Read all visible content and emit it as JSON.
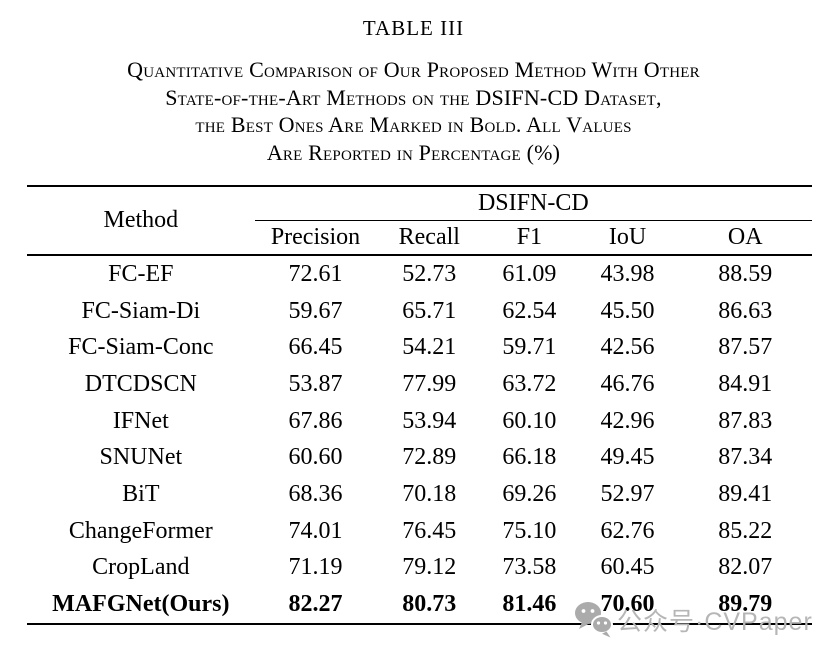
{
  "title": "TABLE III",
  "caption": {
    "lines": [
      "Quantitative Comparison of Our Proposed Method With Other",
      "State-of-the-Art Methods on the DSIFN-CD Dataset,",
      "the Best Ones Are Marked in Bold. All Values",
      "Are Reported in Percentage (%)"
    ]
  },
  "table": {
    "method_header": "Method",
    "group_header": "DSIFN-CD",
    "columns": [
      "Precision",
      "Recall",
      "F1",
      "IoU",
      "OA"
    ],
    "rows": [
      {
        "method": "FC-EF",
        "values": [
          "72.61",
          "52.73",
          "61.09",
          "43.98",
          "88.59"
        ],
        "bold": false
      },
      {
        "method": "FC-Siam-Di",
        "values": [
          "59.67",
          "65.71",
          "62.54",
          "45.50",
          "86.63"
        ],
        "bold": false
      },
      {
        "method": "FC-Siam-Conc",
        "values": [
          "66.45",
          "54.21",
          "59.71",
          "42.56",
          "87.57"
        ],
        "bold": false
      },
      {
        "method": "DTCDSCN",
        "values": [
          "53.87",
          "77.99",
          "63.72",
          "46.76",
          "84.91"
        ],
        "bold": false
      },
      {
        "method": "IFNet",
        "values": [
          "67.86",
          "53.94",
          "60.10",
          "42.96",
          "87.83"
        ],
        "bold": false
      },
      {
        "method": "SNUNet",
        "values": [
          "60.60",
          "72.89",
          "66.18",
          "49.45",
          "87.34"
        ],
        "bold": false
      },
      {
        "method": "BiT",
        "values": [
          "68.36",
          "70.18",
          "69.26",
          "52.97",
          "89.41"
        ],
        "bold": false
      },
      {
        "method": "ChangeFormer",
        "values": [
          "74.01",
          "76.45",
          "75.10",
          "62.76",
          "85.22"
        ],
        "bold": false
      },
      {
        "method": "CropLand",
        "values": [
          "71.19",
          "79.12",
          "73.58",
          "60.45",
          "82.07"
        ],
        "bold": false
      },
      {
        "method": "MAFGNet(Ours)",
        "values": [
          "82.27",
          "80.73",
          "81.46",
          "70.60",
          "89.79"
        ],
        "bold": true
      }
    ]
  },
  "watermark": {
    "icon": "wechat-icon",
    "text": "公众号·CVPaper",
    "text_color": "#b6b6b6",
    "icon_color": "#ababab"
  },
  "colors": {
    "background": "#ffffff",
    "text": "#000000",
    "rule": "#000000"
  }
}
